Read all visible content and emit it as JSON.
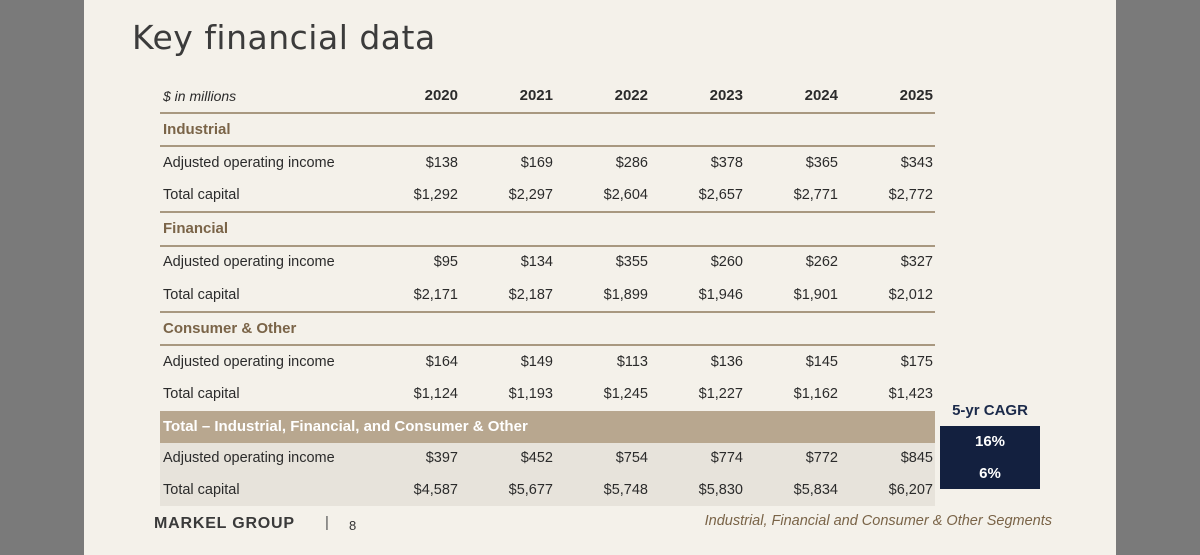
{
  "title": "Key financial data",
  "table": {
    "unit_label": "$ in millions",
    "years": [
      "2020",
      "2021",
      "2022",
      "2023",
      "2024",
      "2025"
    ],
    "segments": [
      {
        "name": "Industrial",
        "rows": [
          {
            "label": "Adjusted operating income",
            "values": [
              "$138",
              "$169",
              "$286",
              "$378",
              "$365",
              "$343"
            ]
          },
          {
            "label": "Total capital",
            "values": [
              "$1,292",
              "$2,297",
              "$2,604",
              "$2,657",
              "$2,771",
              "$2,772"
            ]
          }
        ]
      },
      {
        "name": "Financial",
        "rows": [
          {
            "label": "Adjusted operating income",
            "values": [
              "$95",
              "$134",
              "$355",
              "$260",
              "$262",
              "$327"
            ]
          },
          {
            "label": "Total capital",
            "values": [
              "$2,171",
              "$2,187",
              "$1,899",
              "$1,946",
              "$1,901",
              "$2,012"
            ]
          }
        ]
      },
      {
        "name": "Consumer & Other",
        "rows": [
          {
            "label": "Adjusted operating income",
            "values": [
              "$164",
              "$149",
              "$113",
              "$136",
              "$145",
              "$175"
            ]
          },
          {
            "label": "Total capital",
            "values": [
              "$1,124",
              "$1,193",
              "$1,245",
              "$1,227",
              "$1,162",
              "$1,423"
            ]
          }
        ]
      }
    ],
    "total": {
      "name": "Total – Industrial, Financial, and Consumer & Other",
      "rows": [
        {
          "label": "Adjusted operating income",
          "values": [
            "$397",
            "$452",
            "$754",
            "$774",
            "$772",
            "$845"
          ]
        },
        {
          "label": "Total capital",
          "values": [
            "$4,587",
            "$5,677",
            "$5,748",
            "$5,830",
            "$5,834",
            "$6,207"
          ]
        }
      ]
    }
  },
  "cagr": {
    "header": "5-yr CAGR",
    "values": [
      "16%",
      "6%"
    ]
  },
  "footer": {
    "logo": "MARKEL GROUP",
    "separator": "|",
    "page": "8",
    "subtitle": "Industrial, Financial and Consumer & Other Segments"
  },
  "colors": {
    "slide_bg": "#f4f1ea",
    "accent_brown": "#7a6448",
    "total_band": "#b8a78f",
    "navy": "#13203f"
  }
}
